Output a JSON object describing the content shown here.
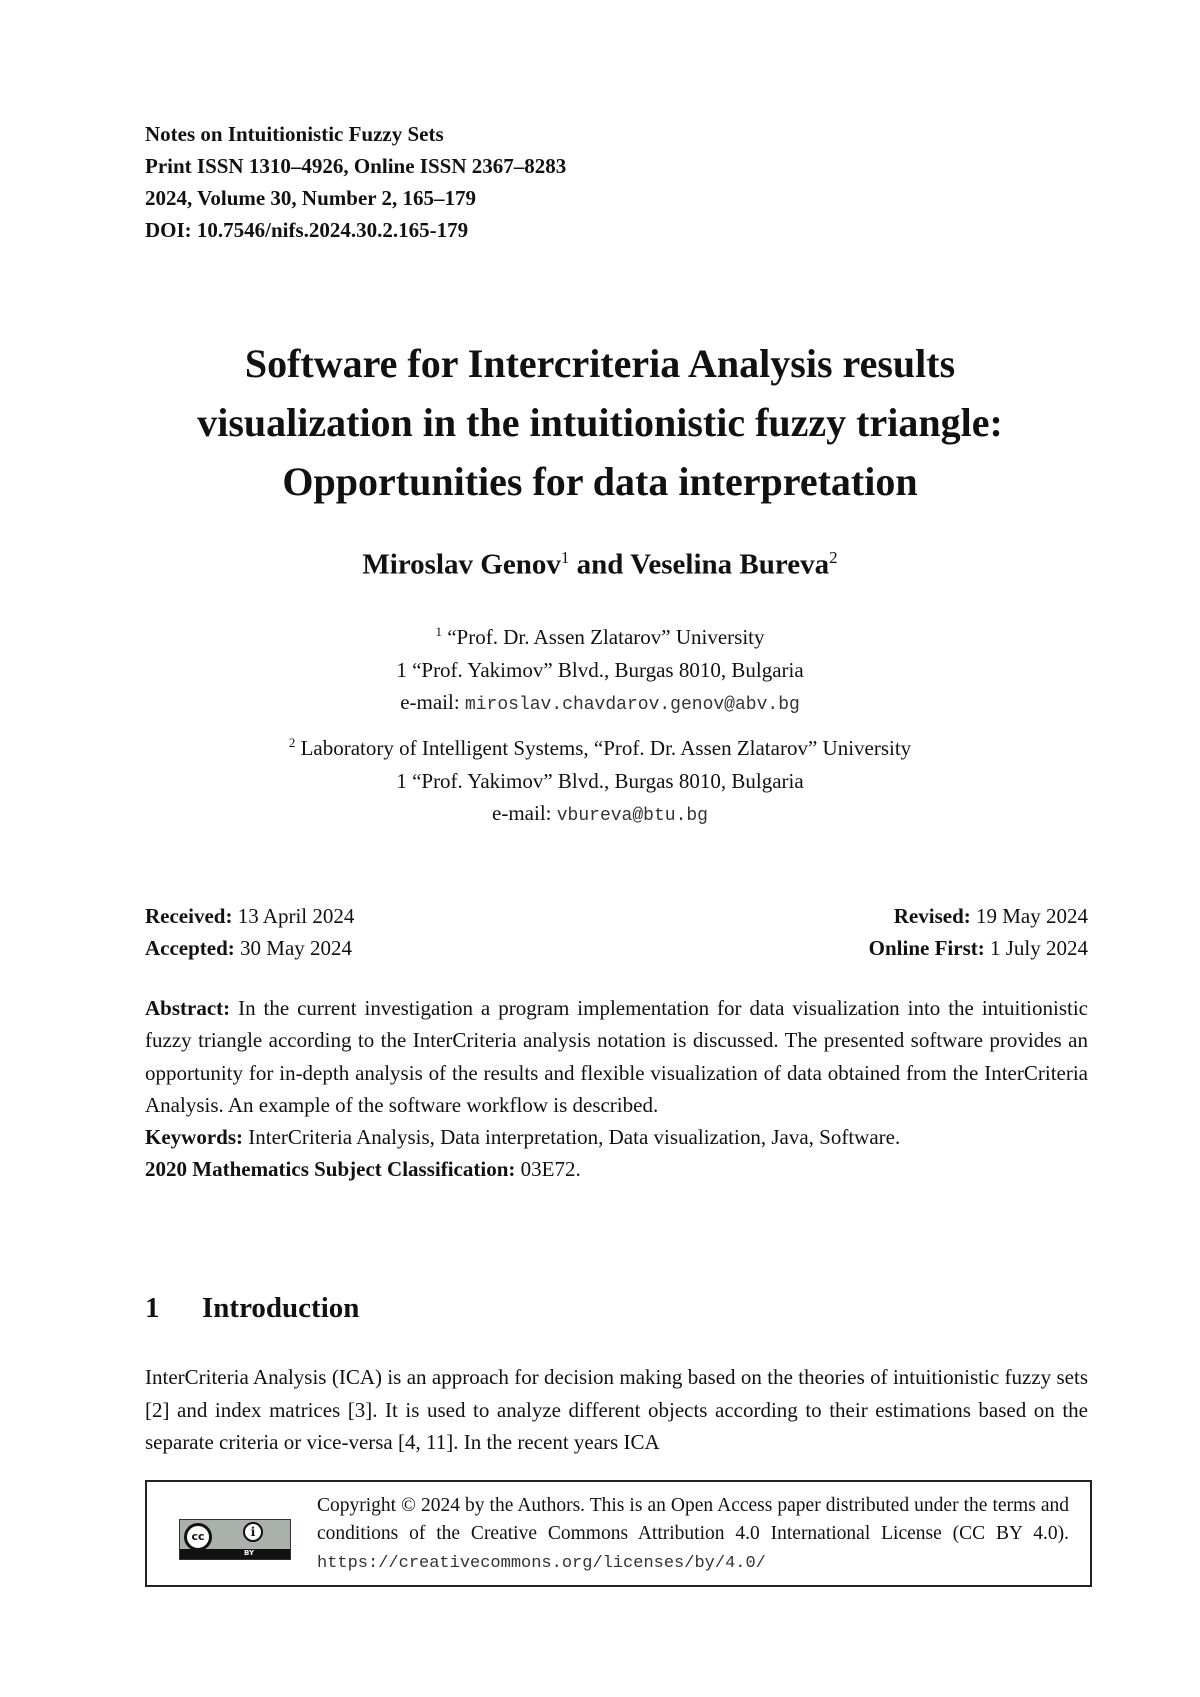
{
  "header": {
    "journal": "Notes on Intuitionistic Fuzzy Sets",
    "issn": "Print ISSN 1310–4926, Online ISSN 2367–8283",
    "volume": "2024, Volume 30, Number 2, 165–179",
    "doi": "DOI: 10.7546/nifs.2024.30.2.165-179"
  },
  "title": [
    "Software for Intercriteria Analysis results",
    "visualization in the intuitionistic fuzzy triangle:",
    "Opportunities for data interpretation"
  ],
  "authors": {
    "a1": "Miroslav Genov",
    "s1": "1",
    "and": " and ",
    "a2": "Veselina Bureva",
    "s2": "2"
  },
  "affiliations": [
    {
      "sup": "1",
      "line1": " “Prof. Dr. Assen Zlatarov” University",
      "line2": "1 “Prof. Yakimov” Blvd., Burgas 8010, Bulgaria",
      "email_label": "e-mail: ",
      "email": "miroslav.chavdarov.genov@abv.bg"
    },
    {
      "sup": "2",
      "line1": " Laboratory of Intelligent Systems, “Prof. Dr. Assen Zlatarov” University",
      "line2": "1 “Prof. Yakimov” Blvd., Burgas 8010, Bulgaria",
      "email_label": "e-mail: ",
      "email": "vbureva@btu.bg"
    }
  ],
  "dates": {
    "received_label": "Received:",
    "received": " 13 April 2024",
    "revised_label": "Revised:",
    "revised": " 19 May 2024",
    "accepted_label": "Accepted:",
    "accepted": " 30 May 2024",
    "online_label": "Online First:",
    "online": " 1 July 2024"
  },
  "abstract": {
    "label": "Abstract:",
    "text": " In the current investigation a program implementation for data visualization into the intuitionistic fuzzy triangle according to the InterCriteria analysis notation is discussed. The presented software provides an opportunity for in-depth analysis of the results and flexible visualization of data obtained from the InterCriteria Analysis. An example of the software workflow is described.",
    "keywords_label": "Keywords:",
    "keywords": " InterCriteria Analysis, Data interpretation, Data visualization, Java, Software.",
    "msc_label": "2020 Mathematics Subject Classification:",
    "msc": " 03E72."
  },
  "section": {
    "number": "1",
    "title": "Introduction",
    "text": "InterCriteria Analysis (ICA) is an approach for decision making based on the theories of intuitionistic fuzzy sets [2] and index matrices [3]. It is used to analyze different objects according to their estimations based on the separate criteria or vice-versa [4, 11]. In the recent years ICA"
  },
  "license": {
    "logo_text": "BY",
    "text": "Copyright © 2024 by the Authors. This is an Open Access paper distributed under the terms and conditions of the Creative Commons Attribution 4.0 International License (CC BY 4.0). ",
    "url": "https://creativecommons.org/licenses/by/4.0/"
  }
}
